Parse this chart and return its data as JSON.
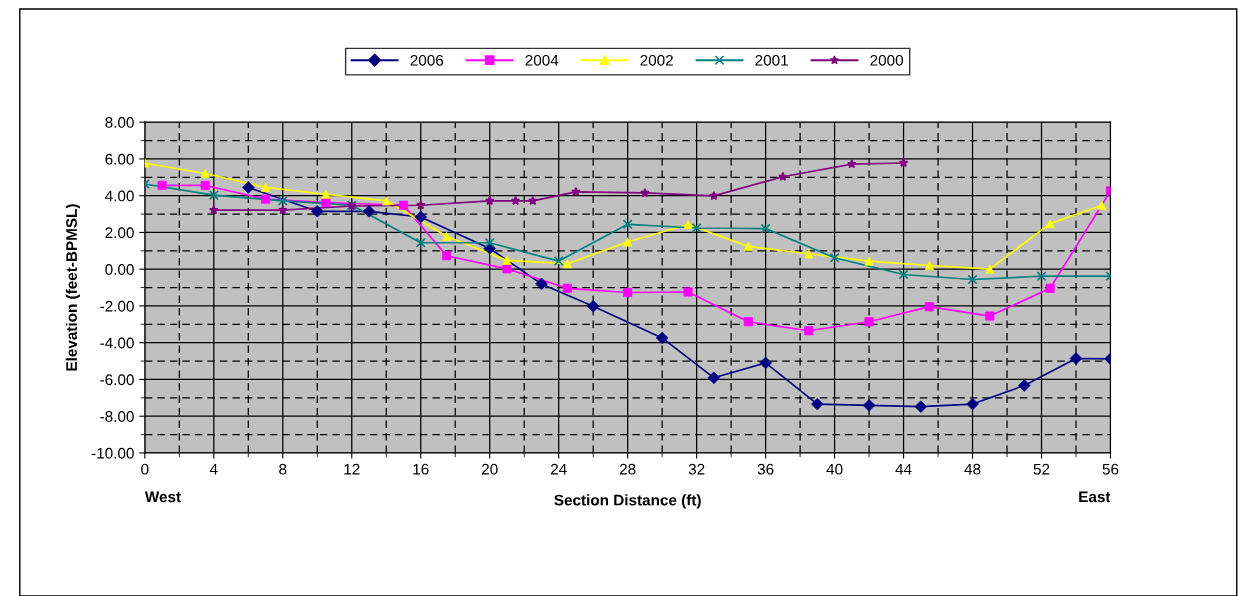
{
  "chart_data": {
    "type": "line",
    "xlabel": "Section Distance (ft)",
    "ylabel": "Elevation (feet-BPMSL)",
    "annotations": [
      "West",
      "East"
    ],
    "xlim": [
      0,
      56
    ],
    "xticks": [
      0,
      4,
      8,
      12,
      16,
      20,
      24,
      28,
      32,
      36,
      40,
      44,
      48,
      52,
      56
    ],
    "ylim": [
      -10,
      8
    ],
    "yticks": [
      {
        "value": -10,
        "label": "-10.00"
      },
      {
        "value": -8,
        "label": "-8.00"
      },
      {
        "value": -6,
        "label": "-6.00"
      },
      {
        "value": -4,
        "label": "-4.00"
      },
      {
        "value": -2,
        "label": "-2.00"
      },
      {
        "value": 0,
        "label": "0.00"
      },
      {
        "value": 2,
        "label": "2.00"
      },
      {
        "value": 4,
        "label": "4.00"
      },
      {
        "value": 6,
        "label": "6.00"
      },
      {
        "value": 8,
        "label": "8.00"
      }
    ],
    "grid": true,
    "legend": "top",
    "line_style": "solid",
    "series": [
      {
        "name": "2006",
        "color": "#000080",
        "marker": "diamond",
        "x": [
          6,
          10,
          13,
          16,
          20,
          23,
          26,
          30,
          33,
          36,
          39,
          42,
          45,
          48,
          51,
          54,
          56
        ],
        "values": [
          4.45,
          3.15,
          3.15,
          2.84,
          1.13,
          -0.8,
          -2.02,
          -3.74,
          -5.91,
          -5.1,
          -7.34,
          -7.41,
          -7.48,
          -7.34,
          -6.33,
          -4.86,
          -4.88
        ]
      },
      {
        "name": "2004",
        "color": "#ff00ff",
        "marker": "square",
        "x": [
          1,
          3.5,
          7,
          10.5,
          15,
          17.5,
          21,
          24.5,
          28,
          31.5,
          35,
          38.5,
          42,
          45.5,
          49,
          52.5,
          56
        ],
        "values": [
          4.56,
          4.56,
          3.81,
          3.63,
          3.48,
          0.73,
          0.02,
          -1.04,
          -1.27,
          -1.24,
          -2.86,
          -3.35,
          -2.86,
          -2.04,
          -2.55,
          -1.04,
          4.26
        ]
      },
      {
        "name": "2002",
        "color": "#ffff00",
        "marker": "triangle",
        "x": [
          0,
          3.5,
          7,
          10.5,
          14,
          17.5,
          21,
          24.5,
          28,
          31.5,
          35,
          38.5,
          42,
          45.5,
          49,
          52.5,
          55.5
        ],
        "values": [
          5.78,
          5.21,
          4.45,
          4.08,
          3.72,
          1.79,
          0.48,
          0.3,
          1.48,
          2.43,
          1.24,
          0.84,
          0.44,
          0.2,
          0.0,
          2.48,
          3.48
        ]
      },
      {
        "name": "2001",
        "color": "#008080",
        "marker": "cross",
        "x": [
          0,
          4,
          8,
          12,
          16,
          20,
          24,
          28,
          32,
          36,
          40,
          44,
          48,
          52,
          56
        ],
        "values": [
          4.63,
          4.03,
          3.72,
          3.48,
          1.44,
          1.44,
          0.44,
          2.44,
          2.24,
          2.21,
          0.62,
          -0.29,
          -0.56,
          -0.38,
          -0.38
        ]
      },
      {
        "name": "2000",
        "color": "#800080",
        "marker": "star",
        "x": [
          4,
          8,
          12,
          16,
          20,
          21.5,
          22.5,
          25,
          29,
          33,
          37,
          41,
          44
        ],
        "values": [
          3.21,
          3.21,
          3.44,
          3.48,
          3.72,
          3.72,
          3.72,
          4.21,
          4.15,
          3.99,
          5.03,
          5.72,
          5.78
        ]
      }
    ]
  }
}
